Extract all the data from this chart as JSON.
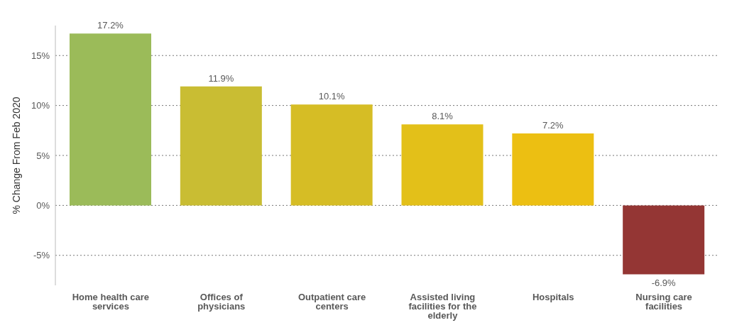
{
  "chart_data": {
    "type": "bar",
    "ylabel": "% Change From Feb 2020",
    "categories": [
      "Home health care services",
      "Offices of physicians",
      "Outpatient care centers",
      "Assisted living facilities for the elderly",
      "Hospitals",
      "Nursing care facilities"
    ],
    "values": [
      17.2,
      11.9,
      10.1,
      8.1,
      7.2,
      -6.9
    ],
    "colors": [
      "#9bbb59",
      "#c9bd33",
      "#d6bd25",
      "#e3c019",
      "#ecbf12",
      "#943634"
    ],
    "value_labels": [
      "17.2%",
      "11.9%",
      "10.1%",
      "8.1%",
      "7.2%",
      "-6.9%"
    ],
    "ylim": [
      -8,
      18
    ],
    "yticks": [
      {
        "value": -5,
        "label": "-5%"
      },
      {
        "value": 0,
        "label": "0%"
      },
      {
        "value": 5,
        "label": "5%"
      },
      {
        "value": 10,
        "label": "10%"
      },
      {
        "value": 15,
        "label": "15%"
      }
    ],
    "grid": "y",
    "legend": false
  }
}
